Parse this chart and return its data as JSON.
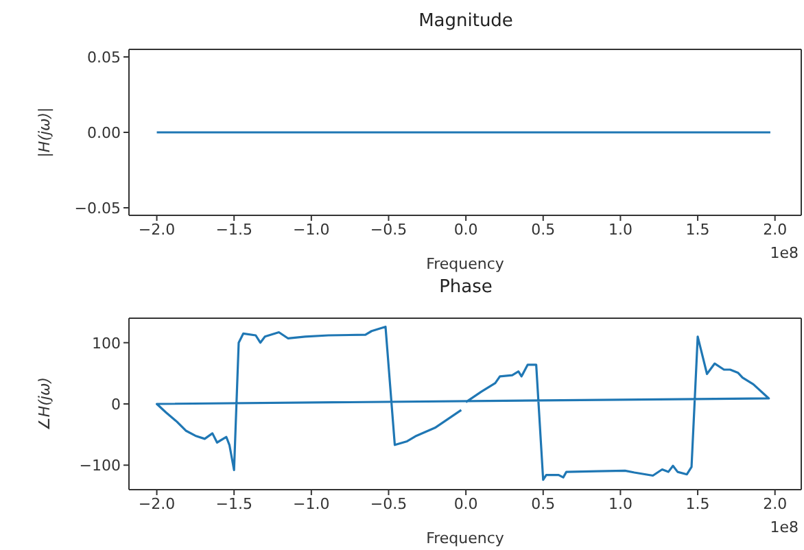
{
  "chart_data": [
    {
      "type": "line",
      "title": "Magnitude",
      "xlabel": "Frequency",
      "ylabel": "|H(jω)|",
      "annotations": [
        "1e8"
      ],
      "x": [
        -2.0,
        -1.0,
        0,
        1.0,
        1.97
      ],
      "values": [
        0,
        0,
        0,
        0,
        0
      ],
      "color": "#1f77b4",
      "xlim": [
        -2.18,
        2.17
      ],
      "xticks": [
        {
          "value": -2.0,
          "label": "−2.0"
        },
        {
          "value": -1.5,
          "label": "−1.5"
        },
        {
          "value": -1.0,
          "label": "−1.0"
        },
        {
          "value": -0.5,
          "label": "−0.5"
        },
        {
          "value": 0,
          "label": "0.0"
        },
        {
          "value": 0.5,
          "label": "0.5"
        },
        {
          "value": 1.0,
          "label": "1.0"
        },
        {
          "value": 1.5,
          "label": "1.5"
        },
        {
          "value": 2.0,
          "label": "2.0"
        }
      ],
      "ylim": [
        -0.055,
        0.055
      ],
      "yticks": [
        {
          "value": -0.05,
          "label": "−0.05"
        },
        {
          "value": 0,
          "label": "0.00"
        },
        {
          "value": 0.05,
          "label": "0.05"
        }
      ]
    },
    {
      "type": "line",
      "title": "Phase",
      "xlabel": "Frequency",
      "ylabel": "∠H(jω)",
      "annotations": [
        "1e8"
      ],
      "x": [
        0,
        0.1,
        0.19,
        0.22,
        0.3,
        0.34,
        0.36,
        0.4,
        0.455,
        0.5,
        0.52,
        0.6,
        0.63,
        0.65,
        0.85,
        1.03,
        1.09,
        1.21,
        1.27,
        1.31,
        1.34,
        1.37,
        1.43,
        1.46,
        1.48,
        1.5,
        1.56,
        1.61,
        1.67,
        1.71,
        1.76,
        1.79,
        1.86,
        1.96,
        -2.0,
        -1.94,
        -1.87,
        -1.81,
        -1.75,
        -1.69,
        -1.64,
        -1.61,
        -1.55,
        -1.53,
        -1.5,
        -1.47,
        -1.44,
        -1.36,
        -1.33,
        -1.3,
        -1.21,
        -1.15,
        -1.04,
        -0.89,
        -0.65,
        -0.61,
        -0.52,
        -0.46,
        -0.38,
        -0.32,
        -0.2,
        -0.03
      ],
      "values": [
        3,
        20,
        34,
        45,
        47,
        53,
        45,
        64,
        64,
        -124,
        -116,
        -116,
        -120,
        -111,
        -110,
        -109,
        -112,
        -117,
        -107,
        -111,
        -101,
        -111,
        -115,
        -103,
        3,
        110,
        49,
        66,
        56,
        56,
        51,
        43,
        32,
        9,
        0,
        -14,
        -29,
        -44,
        -52,
        -57,
        -48,
        -63,
        -54,
        -67,
        -108,
        100,
        115,
        112,
        100,
        110,
        117,
        107,
        110,
        112,
        113,
        119,
        126,
        -67,
        -61,
        -52,
        -39,
        -10
      ],
      "color": "#1f77b4",
      "xlim": [
        -2.18,
        2.17
      ],
      "xticks": [
        {
          "value": -2.0,
          "label": "−2.0"
        },
        {
          "value": -1.5,
          "label": "−1.5"
        },
        {
          "value": -1.0,
          "label": "−1.0"
        },
        {
          "value": -0.5,
          "label": "−0.5"
        },
        {
          "value": 0,
          "label": "0.0"
        },
        {
          "value": 0.5,
          "label": "0.5"
        },
        {
          "value": 1.0,
          "label": "1.0"
        },
        {
          "value": 1.5,
          "label": "1.5"
        },
        {
          "value": 2.0,
          "label": "2.0"
        }
      ],
      "ylim": [
        -140,
        140
      ],
      "yticks": [
        {
          "value": -100,
          "label": "−100"
        },
        {
          "value": 0,
          "label": "0"
        },
        {
          "value": 100,
          "label": "100"
        }
      ]
    }
  ]
}
